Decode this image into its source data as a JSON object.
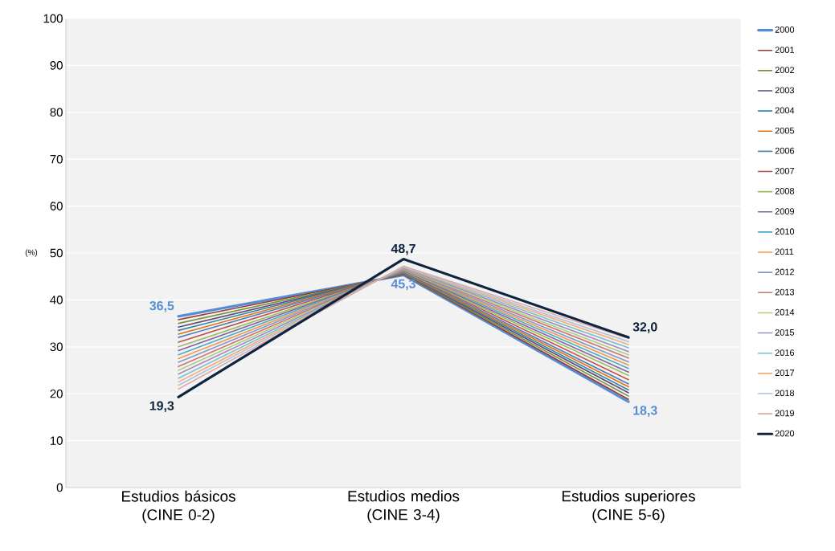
{
  "chart_data": {
    "type": "line",
    "ylabel": "(%)",
    "categories": [
      "Estudios básicos (CINE 0-2)",
      "Estudios medios (CINE 3-4)",
      "Estudios superiores (CINE 5-6)"
    ],
    "ylim": [
      0,
      100
    ],
    "yticks": [
      0,
      10,
      20,
      30,
      40,
      50,
      60,
      70,
      80,
      90,
      100
    ],
    "grid": "y",
    "legend": "right",
    "marker": "none",
    "line_style": "solid",
    "series": [
      {
        "name": "2000",
        "color": "#558ed5",
        "values": [
          36.5,
          45.3,
          18.3
        ],
        "value_labels": [
          "36,5",
          "45,3",
          "18,3"
        ]
      },
      {
        "name": "2001",
        "color": "#953735",
        "values": [
          35.8,
          45.4,
          18.8
        ]
      },
      {
        "name": "2002",
        "color": "#77933c",
        "values": [
          35.0,
          45.5,
          19.5
        ]
      },
      {
        "name": "2003",
        "color": "#604a7b",
        "values": [
          34.2,
          45.6,
          20.2
        ]
      },
      {
        "name": "2004",
        "color": "#31859c",
        "values": [
          33.5,
          45.7,
          20.8
        ]
      },
      {
        "name": "2005",
        "color": "#e46c0a",
        "values": [
          32.7,
          45.8,
          21.5
        ]
      },
      {
        "name": "2006",
        "color": "#4f81bd",
        "values": [
          32.0,
          45.9,
          22.1
        ]
      },
      {
        "name": "2007",
        "color": "#c0504d",
        "values": [
          31.0,
          46.0,
          23.0
        ]
      },
      {
        "name": "2008",
        "color": "#9bbb59",
        "values": [
          30.0,
          46.1,
          23.9
        ]
      },
      {
        "name": "2009",
        "color": "#8064a2",
        "values": [
          29.2,
          46.2,
          24.6
        ]
      },
      {
        "name": "2010",
        "color": "#4bacc6",
        "values": [
          28.3,
          46.3,
          25.4
        ]
      },
      {
        "name": "2011",
        "color": "#f79646",
        "values": [
          27.5,
          46.4,
          26.1
        ]
      },
      {
        "name": "2012",
        "color": "#7e9bc8",
        "values": [
          26.7,
          46.5,
          26.8
        ]
      },
      {
        "name": "2013",
        "color": "#cd7371",
        "values": [
          25.8,
          46.6,
          27.6
        ]
      },
      {
        "name": "2014",
        "color": "#b0cd7f",
        "values": [
          25.0,
          46.7,
          28.3
        ]
      },
      {
        "name": "2015",
        "color": "#a08bbd",
        "values": [
          24.2,
          46.8,
          29.0
        ]
      },
      {
        "name": "2016",
        "color": "#76bfd4",
        "values": [
          23.3,
          46.9,
          29.8
        ]
      },
      {
        "name": "2017",
        "color": "#f9ab6e",
        "values": [
          22.5,
          47.0,
          30.5
        ]
      },
      {
        "name": "2018",
        "color": "#b0c2de",
        "values": [
          21.8,
          47.1,
          31.1
        ]
      },
      {
        "name": "2019",
        "color": "#dba9a8",
        "values": [
          21.0,
          47.2,
          31.8
        ]
      },
      {
        "name": "2020",
        "color": "#10243e",
        "values": [
          19.3,
          48.7,
          32.0
        ],
        "value_labels": [
          "19,3",
          "48,7",
          "32,0"
        ]
      }
    ]
  }
}
